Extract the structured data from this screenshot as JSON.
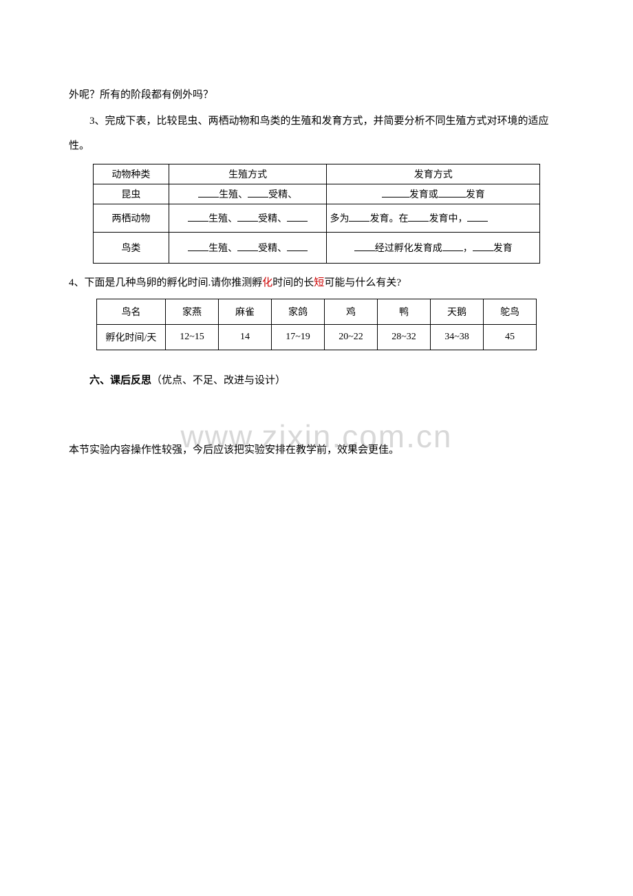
{
  "paragraphs": {
    "p1": "外呢？所有的阶段都有例外吗？",
    "p2": "3、完成下表，比较昆虫、两栖动物和鸟类的生殖和发育方式，并简要分析不同生殖方式对环境的适应性。"
  },
  "table1": {
    "header": {
      "col1": "动物种类",
      "col2": "生殖方式",
      "col3": "发育方式"
    },
    "rows": [
      {
        "col1": "昆虫",
        "col2_parts": [
          "生殖、",
          "受精、"
        ],
        "col3_parts": [
          "发育或",
          "发育"
        ]
      },
      {
        "col1": "两栖动物",
        "col2_parts": [
          "生殖、",
          "受精、"
        ],
        "col3_parts": [
          "多为",
          "发育。在",
          "发育中，"
        ]
      },
      {
        "col1": "鸟类",
        "col2_parts": [
          "生殖、",
          "受精、"
        ],
        "col3_parts": [
          "经过孵化发育成",
          "，",
          "发育"
        ]
      }
    ]
  },
  "q4_text": "4、下面是几种鸟卵的孵化时间.请你推测孵化时间的长短可能与什么有关?",
  "q4_red_char": "短",
  "table2": {
    "header": [
      "鸟名",
      "家燕",
      "麻雀",
      "家鸽",
      "鸡",
      "鸭",
      "天鹅",
      "鸵鸟"
    ],
    "row_label": "孵化时间/天",
    "values": [
      "12~15",
      "14",
      "17~19",
      "20~22",
      "28~32",
      "34~38",
      "45"
    ]
  },
  "section6": {
    "bold": "六、课后反思",
    "normal": "（优点、不足、改进与设计）"
  },
  "watermark": "www.zixin.com.cn",
  "final": "本节实验内容操作性较强，今后应该把实验安排在教学前，效果会更佳。",
  "colors": {
    "text": "#000000",
    "background": "#ffffff",
    "watermark": "#d8d8d8",
    "red": "#cc0000",
    "border": "#000000"
  },
  "fonts": {
    "body_size": 15,
    "table_size": 14,
    "watermark_size": 46
  }
}
